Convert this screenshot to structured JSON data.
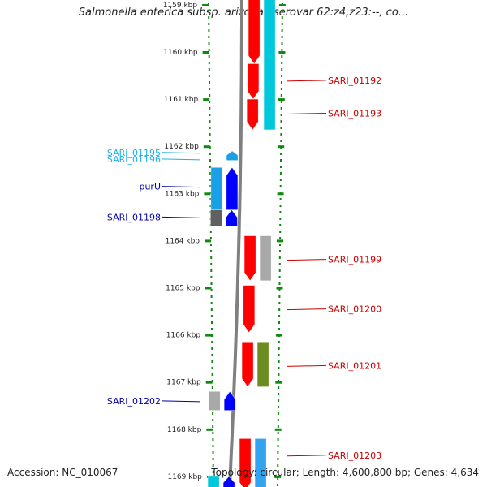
{
  "title": "Salmonella enterica subsp. arizonae serovar 62:z4,z23:--, co...",
  "footer": {
    "accession": "Accession: NC_010067",
    "topology": "Topology: circular; Length: 4,600,800 bp; Genes: 4,634"
  },
  "ruler": {
    "unit": "kbp",
    "ticks": [
      1159,
      1160,
      1161,
      1162,
      1163,
      1164,
      1165,
      1166,
      1167,
      1168,
      1169
    ],
    "tick_labels": [
      "1159 kbp",
      "1160 kbp",
      "1161 kbp",
      "1162 kbp",
      "1163 kbp",
      "1164 kbp",
      "1165 kbp",
      "1166 kbp",
      "1167 kbp",
      "1168 kbp",
      "1169 kbp"
    ]
  },
  "colors": {
    "forward_cds": "#ff0000",
    "reverse_cds": "#0000ff",
    "cyan_feature": "#00c8dc",
    "sky_feature": "#1aa0e6",
    "gray_feature": "#a8a8a8",
    "dark_gray_feature": "#606060",
    "olive_feature": "#6b8c1f",
    "light_blue_feature": "#33a3f0",
    "backbone": "#808080",
    "ruler_tick": "#118811",
    "label_forward": "#cc0000",
    "label_reverse": "#0000aa",
    "label_cyan": "#1ab0e8"
  },
  "features": [
    {
      "id": "f1",
      "strand": "forward",
      "track": "outer",
      "color": "red",
      "start_kbp": 1158.8,
      "end_kbp": 1160.25
    },
    {
      "id": "f2",
      "strand": "forward",
      "track": "outer",
      "color": "red",
      "start_kbp": 1160.25,
      "end_kbp": 1161.0
    },
    {
      "id": "f3",
      "strand": "forward",
      "track": "outer",
      "color": "red",
      "start_kbp": 1161.0,
      "end_kbp": 1161.65
    },
    {
      "id": "f4",
      "strand": "forward",
      "track": "cyan",
      "color": "cyan",
      "start_kbp": 1158.8,
      "end_kbp": 1161.65
    },
    {
      "id": "f5",
      "strand": "reverse",
      "track": "outer",
      "color": "sky",
      "start_kbp": 1162.1,
      "end_kbp": 1162.3
    },
    {
      "id": "f6",
      "strand": "reverse",
      "track": "outer",
      "color": "blue",
      "start_kbp": 1162.45,
      "end_kbp": 1163.35
    },
    {
      "id": "f7",
      "strand": "reverse",
      "track": "inner",
      "color": "sky",
      "start_kbp": 1162.45,
      "end_kbp": 1163.35
    },
    {
      "id": "f8",
      "strand": "reverse",
      "track": "outer",
      "color": "blue",
      "start_kbp": 1163.35,
      "end_kbp": 1163.7
    },
    {
      "id": "f9",
      "strand": "reverse",
      "track": "inner",
      "color": "darkgray",
      "start_kbp": 1163.35,
      "end_kbp": 1163.7
    },
    {
      "id": "f10",
      "strand": "forward",
      "track": "outer",
      "color": "red",
      "start_kbp": 1163.9,
      "end_kbp": 1164.85
    },
    {
      "id": "f11",
      "strand": "forward",
      "track": "cyan",
      "color": "gray",
      "start_kbp": 1163.9,
      "end_kbp": 1164.85
    },
    {
      "id": "f12",
      "strand": "forward",
      "track": "outer",
      "color": "red",
      "start_kbp": 1164.95,
      "end_kbp": 1165.95
    },
    {
      "id": "f13",
      "strand": "forward",
      "track": "outer",
      "color": "red",
      "start_kbp": 1166.15,
      "end_kbp": 1167.1
    },
    {
      "id": "f14",
      "strand": "forward",
      "track": "cyan",
      "color": "olive",
      "start_kbp": 1166.15,
      "end_kbp": 1167.1
    },
    {
      "id": "f15",
      "strand": "reverse",
      "track": "outer",
      "color": "blue",
      "start_kbp": 1167.2,
      "end_kbp": 1167.6
    },
    {
      "id": "f16",
      "strand": "reverse",
      "track": "inner",
      "color": "gray",
      "start_kbp": 1167.2,
      "end_kbp": 1167.6
    },
    {
      "id": "f17",
      "strand": "forward",
      "track": "outer",
      "color": "red",
      "start_kbp": 1168.2,
      "end_kbp": 1169.3
    },
    {
      "id": "f18",
      "strand": "forward",
      "track": "cyan",
      "color": "lightblue",
      "start_kbp": 1168.2,
      "end_kbp": 1169.3
    },
    {
      "id": "f19",
      "strand": "reverse",
      "track": "outer",
      "color": "blue",
      "start_kbp": 1169.0,
      "end_kbp": 1169.3
    },
    {
      "id": "f20",
      "strand": "reverse",
      "track": "inner",
      "color": "cyan",
      "start_kbp": 1169.0,
      "end_kbp": 1169.3
    }
  ],
  "labels": [
    {
      "text": "SARI_01192",
      "side": "right",
      "color_key": "label_forward",
      "kbp": 1160.6
    },
    {
      "text": "SARI_01193",
      "side": "right",
      "color_key": "label_forward",
      "kbp": 1161.3
    },
    {
      "text": "SARI_01195",
      "side": "left",
      "color_key": "label_cyan",
      "kbp": 1162.13
    },
    {
      "text": "SARI_01196",
      "side": "left",
      "color_key": "label_cyan",
      "kbp": 1162.27
    },
    {
      "text": "purU",
      "side": "left",
      "color_key": "label_reverse",
      "kbp": 1162.85
    },
    {
      "text": "SARI_01198",
      "side": "left",
      "color_key": "label_reverse",
      "kbp": 1163.5
    },
    {
      "text": "SARI_01199",
      "side": "right",
      "color_key": "label_forward",
      "kbp": 1164.4
    },
    {
      "text": "SARI_01200",
      "side": "right",
      "color_key": "label_forward",
      "kbp": 1165.45
    },
    {
      "text": "SARI_01201",
      "side": "right",
      "color_key": "label_forward",
      "kbp": 1166.65
    },
    {
      "text": "SARI_01202",
      "side": "left",
      "color_key": "label_reverse",
      "kbp": 1167.4
    },
    {
      "text": "SARI_01203",
      "side": "right",
      "color_key": "label_forward",
      "kbp": 1168.55
    }
  ]
}
